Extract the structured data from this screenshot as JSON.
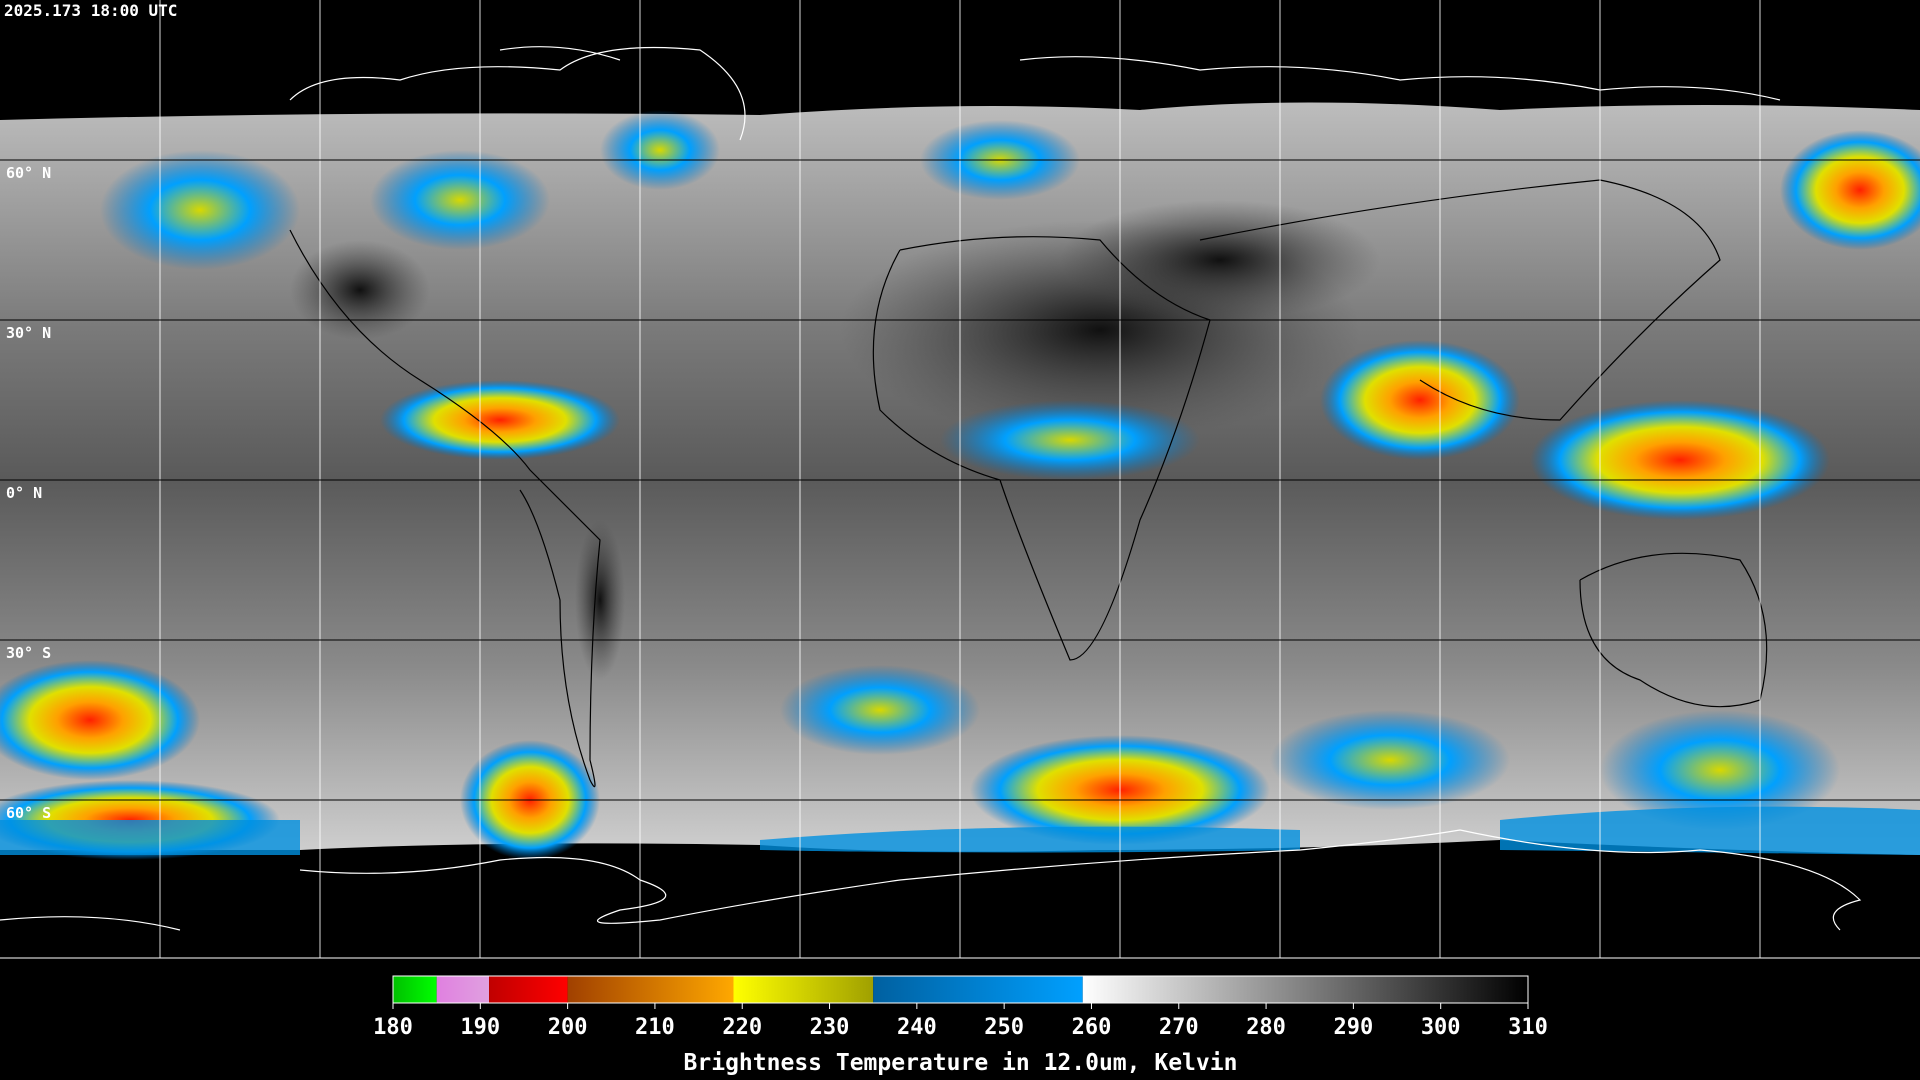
{
  "timestamp": "2025.173 18:00 UTC",
  "latitude_labels": [
    "60° N",
    "30° N",
    "0° N",
    "30° S",
    "60° S"
  ],
  "colorbar": {
    "ticks": [
      180,
      190,
      200,
      210,
      220,
      230,
      240,
      250,
      260,
      270,
      280,
      290,
      300,
      310
    ],
    "segments": [
      {
        "from": 180,
        "to": 185,
        "colors": [
          "#00c000",
          "#00ff00"
        ]
      },
      {
        "from": 185,
        "to": 191,
        "colors": [
          "#e080e0",
          "#e0a0e0"
        ]
      },
      {
        "from": 191,
        "to": 200,
        "colors": [
          "#c00000",
          "#ff0000"
        ]
      },
      {
        "from": 200,
        "to": 219,
        "colors": [
          "#a04000",
          "#ffa800"
        ]
      },
      {
        "from": 219,
        "to": 235,
        "colors": [
          "#ffff00",
          "#a0a000"
        ]
      },
      {
        "from": 235,
        "to": 259,
        "colors": [
          "#0060a0",
          "#00a0ff"
        ]
      },
      {
        "from": 259,
        "to": 310,
        "colors": [
          "#ffffff",
          "#000000"
        ]
      }
    ],
    "label": "Brightness Temperature in 12.0um, Kelvin"
  }
}
